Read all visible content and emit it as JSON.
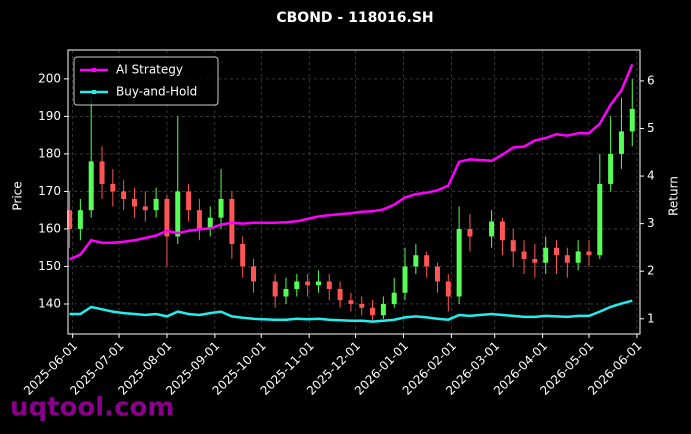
{
  "chart_data": {
    "type": "candlestick",
    "title": "CBOND - 118016.SH",
    "ylabel": "Price",
    "y2label": "Return",
    "watermark": "uqtool.com",
    "x": [
      "2025-05-30",
      "2025-06-06",
      "2025-06-13",
      "2025-06-20",
      "2025-06-27",
      "2025-07-04",
      "2025-07-11",
      "2025-07-18",
      "2025-07-25",
      "2025-08-01",
      "2025-08-08",
      "2025-08-15",
      "2025-08-22",
      "2025-08-29",
      "2025-09-05",
      "2025-09-12",
      "2025-09-19",
      "2025-09-26",
      "2025-10-10",
      "2025-10-17",
      "2025-10-24",
      "2025-10-31",
      "2025-11-07",
      "2025-11-14",
      "2025-11-21",
      "2025-11-28",
      "2025-12-05",
      "2025-12-12",
      "2025-12-19",
      "2025-12-26",
      "2026-01-02",
      "2026-01-09",
      "2026-01-16",
      "2026-01-23",
      "2026-01-30",
      "2026-02-06",
      "2026-02-13",
      "2026-02-27",
      "2026-03-06",
      "2026-03-13",
      "2026-03-20",
      "2026-03-27",
      "2026-04-03",
      "2026-04-10",
      "2026-04-17",
      "2026-04-24",
      "2026-05-01",
      "2026-05-08",
      "2026-05-15",
      "2026-05-22",
      "2026-05-29"
    ],
    "open": [
      165,
      160,
      165,
      178,
      172,
      170,
      168,
      166,
      165,
      168,
      158,
      170,
      165,
      160,
      163,
      168,
      156,
      150,
      146,
      142,
      144,
      146,
      145,
      146,
      144,
      141,
      140,
      139,
      137,
      140,
      143,
      150,
      153,
      150,
      146,
      142,
      160,
      158,
      162,
      157,
      154,
      152,
      151,
      155,
      153,
      151,
      154,
      153,
      172,
      180,
      186
    ],
    "high": [
      170,
      168,
      195,
      182,
      176,
      173,
      171,
      170,
      171,
      169,
      190,
      172,
      168,
      166,
      176,
      170,
      158,
      152,
      148,
      147,
      148,
      148,
      149,
      148,
      146,
      143,
      142,
      141,
      142,
      147,
      155,
      156,
      154,
      151,
      148,
      166,
      164,
      165,
      163,
      160,
      157,
      156,
      158,
      157,
      155,
      157,
      157,
      180,
      190,
      195,
      200
    ],
    "low": [
      155,
      157,
      163,
      168,
      166,
      165,
      163,
      162,
      163,
      150,
      156,
      162,
      157,
      158,
      160,
      152,
      147,
      143,
      139,
      140,
      142,
      142,
      143,
      141,
      139,
      138,
      137,
      135,
      136,
      139,
      141,
      148,
      147,
      143,
      138,
      140,
      154,
      155,
      153,
      150,
      148,
      147,
      148,
      148,
      147,
      149,
      150,
      152,
      170,
      176,
      182
    ],
    "close": [
      160,
      165,
      178,
      172,
      170,
      168,
      166,
      165,
      168,
      158,
      170,
      165,
      160,
      163,
      168,
      156,
      150,
      146,
      142,
      144,
      146,
      145,
      146,
      144,
      141,
      140,
      139,
      137,
      140,
      143,
      150,
      153,
      150,
      146,
      142,
      160,
      158,
      162,
      157,
      154,
      152,
      151,
      155,
      153,
      151,
      154,
      153,
      172,
      180,
      186,
      192
    ],
    "up_color": "#55ff55",
    "down_color": "#ff5555",
    "series": [
      {
        "name": "AI Strategy",
        "color": "#ff00ff",
        "axis": "y2",
        "values": [
          2.25,
          2.35,
          2.65,
          2.6,
          2.6,
          2.62,
          2.65,
          2.7,
          2.75,
          2.85,
          2.8,
          2.85,
          2.88,
          2.9,
          2.98,
          3.02,
          3.0,
          3.02,
          3.02,
          3.03,
          3.05,
          3.1,
          3.15,
          3.18,
          3.2,
          3.22,
          3.25,
          3.26,
          3.3,
          3.4,
          3.55,
          3.62,
          3.65,
          3.7,
          3.8,
          4.3,
          4.35,
          4.32,
          4.45,
          4.6,
          4.62,
          4.75,
          4.8,
          4.88,
          4.85,
          4.9,
          4.9,
          5.1,
          5.5,
          5.8,
          6.35
        ]
      },
      {
        "name": "Buy-and-Hold",
        "color": "#22eeee",
        "axis": "y2",
        "values": [
          1.1,
          1.1,
          1.25,
          1.2,
          1.15,
          1.12,
          1.1,
          1.08,
          1.1,
          1.05,
          1.15,
          1.1,
          1.08,
          1.12,
          1.15,
          1.05,
          1.02,
          1.0,
          0.98,
          0.98,
          1.0,
          0.99,
          1.0,
          0.98,
          0.97,
          0.96,
          0.96,
          0.94,
          0.96,
          0.98,
          1.03,
          1.05,
          1.03,
          1.0,
          0.98,
          1.08,
          1.06,
          1.1,
          1.08,
          1.06,
          1.04,
          1.04,
          1.06,
          1.05,
          1.04,
          1.06,
          1.06,
          1.15,
          1.25,
          1.32,
          1.38
        ]
      }
    ],
    "xlim": [
      "2025-05-29",
      "2026-06-03"
    ],
    "xticks": [
      "2025-06-01",
      "2025-07-01",
      "2025-08-01",
      "2025-09-01",
      "2025-10-01",
      "2025-11-01",
      "2025-12-01",
      "2026-01-01",
      "2026-02-01",
      "2026-03-01",
      "2026-04-01",
      "2026-05-01",
      "2026-06-01"
    ],
    "ylim": [
      132,
      207.7
    ],
    "yticks": [
      140,
      150,
      160,
      170,
      180,
      190,
      200
    ],
    "y2lim": [
      0.68,
      6.65
    ],
    "y2ticks": [
      1,
      2,
      3,
      4,
      5,
      6
    ],
    "grid": true,
    "legend": "upper left"
  }
}
